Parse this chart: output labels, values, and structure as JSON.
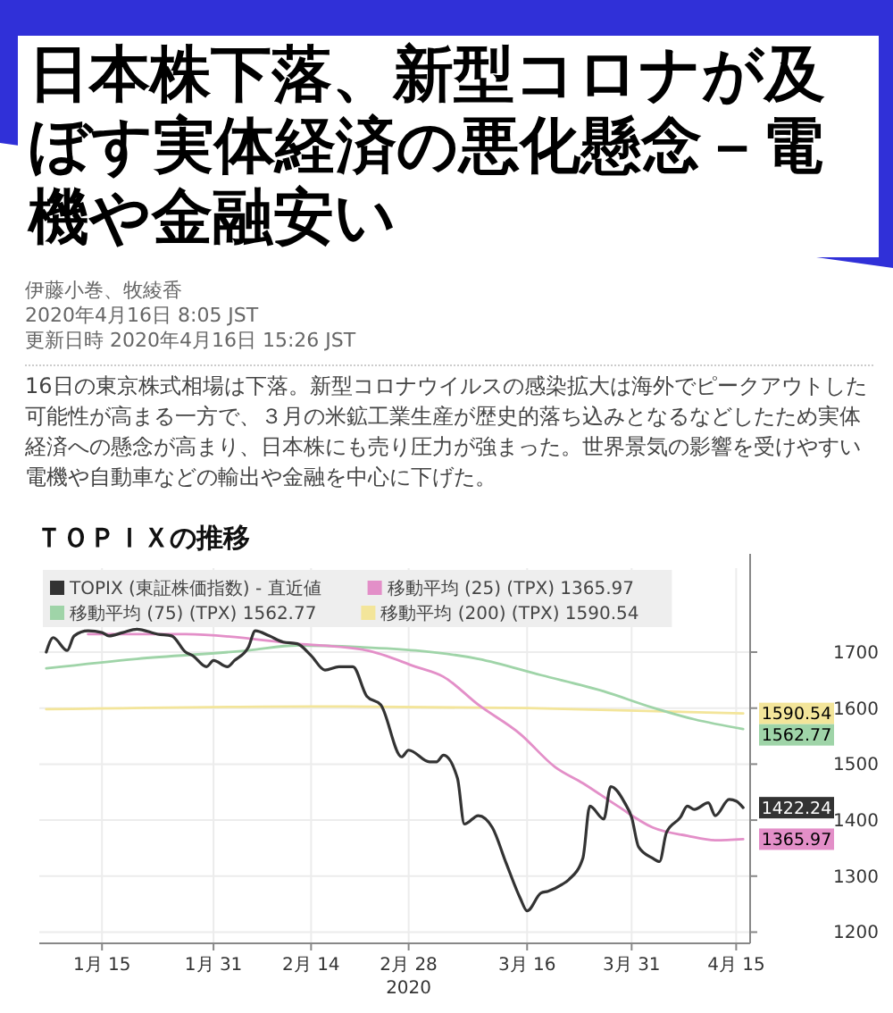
{
  "chart_data": {
    "type": "line",
    "title": "日本株下落、新型コロナが及ぼす実体経済の悪化懸念－電機や金融安い",
    "subtitle": "ＴＯＰＩＸの推移",
    "xlabel": "2020",
    "annotations": [
      "伊藤小巻、牧綾香",
      "2020年4月16日 8:05 JST",
      "更新日時 2020年4月16日 15:26 JST",
      "16日の東京株式相場は下落。新型コロナウイルスの感染拡大は海外でピークアウトした可能性が高まる一方で、３月の米鉱工業生産が歴史的落ち込みとなるなどしたため実体経済への懸念が高まり、日本株にも売り圧力が強まった。世界景気の影響を受けやすい電機や自動車などの輸出や金融を中心に下げた。"
    ],
    "xlim": [
      "2020-01-06",
      "2020-04-17"
    ],
    "xticks": [
      {
        "value": "2020-01-15",
        "label": "1月 15"
      },
      {
        "value": "2020-01-31",
        "label": "1月 31"
      },
      {
        "value": "2020-02-14",
        "label": "2月 14"
      },
      {
        "value": "2020-02-28",
        "label": "2月 28"
      },
      {
        "value": "2020-03-16",
        "label": "3月 16"
      },
      {
        "value": "2020-03-31",
        "label": "3月 31"
      },
      {
        "value": "2020-04-15",
        "label": "4月 15"
      }
    ],
    "ylim": [
      1180,
      1850
    ],
    "yticks": [
      1200,
      1300,
      1400,
      1500,
      1600,
      1700
    ],
    "grid": true,
    "legend": "top left",
    "line_style": "solid",
    "marker": "none",
    "series": [
      {
        "name": "TOPIX (東証株価指数) - 直近値",
        "color": "#333333",
        "x": [
          "2020-01-07",
          "2020-01-08",
          "2020-01-10",
          "2020-01-11",
          "2020-01-13",
          "2020-01-15",
          "2020-01-16",
          "2020-01-18",
          "2020-01-20",
          "2020-01-23",
          "2020-01-25",
          "2020-01-27",
          "2020-01-28",
          "2020-01-30",
          "2020-01-31",
          "2020-02-02",
          "2020-02-03",
          "2020-02-05",
          "2020-02-06",
          "2020-02-08",
          "2020-02-10",
          "2020-02-12",
          "2020-02-14",
          "2020-02-16",
          "2020-02-18",
          "2020-02-20",
          "2020-02-22",
          "2020-02-24",
          "2020-02-27",
          "2020-02-28",
          "2020-03-02",
          "2020-03-03",
          "2020-03-04",
          "2020-03-06",
          "2020-03-07",
          "2020-03-09",
          "2020-03-11",
          "2020-03-13",
          "2020-03-15",
          "2020-03-16",
          "2020-03-18",
          "2020-03-19",
          "2020-03-21",
          "2020-03-22",
          "2020-03-24",
          "2020-03-25",
          "2020-03-27",
          "2020-03-28",
          "2020-03-30",
          "2020-03-31",
          "2020-04-01",
          "2020-04-03",
          "2020-04-04",
          "2020-04-05",
          "2020-04-07",
          "2020-04-08",
          "2020-04-09",
          "2020-04-11",
          "2020-04-12",
          "2020-04-14",
          "2020-04-15",
          "2020-04-16"
        ],
        "values": [
          1700,
          1726,
          1703,
          1729,
          1738,
          1735,
          1729,
          1735,
          1741,
          1732,
          1729,
          1700,
          1694,
          1674,
          1685,
          1674,
          1685,
          1709,
          1738,
          1729,
          1718,
          1715,
          1694,
          1668,
          1674,
          1674,
          1621,
          1606,
          1513,
          1525,
          1504,
          1504,
          1516,
          1475,
          1393,
          1408,
          1387,
          1323,
          1261,
          1238,
          1270,
          1273,
          1285,
          1294,
          1332,
          1425,
          1402,
          1460,
          1431,
          1405,
          1352,
          1332,
          1326,
          1378,
          1405,
          1425,
          1419,
          1431,
          1408,
          1437,
          1434,
          1422.24
        ],
        "value_labels": [
          null,
          null,
          null,
          null,
          null,
          null,
          null,
          null,
          null,
          null,
          null,
          null,
          null,
          null,
          null,
          null,
          null,
          null,
          null,
          null,
          null,
          null,
          null,
          null,
          null,
          null,
          null,
          null,
          null,
          null,
          null,
          null,
          null,
          null,
          null,
          null,
          null,
          null,
          null,
          null,
          null,
          null,
          null,
          null,
          null,
          null,
          null,
          null,
          null,
          null,
          null,
          null,
          null,
          null,
          null,
          null,
          null,
          null,
          null,
          null,
          null,
          "1422.24"
        ]
      },
      {
        "name": "移動平均 (25) (TPX) 1365.97",
        "color": "#e38fc8",
        "x": [
          "2020-01-13",
          "2020-01-27",
          "2020-02-12",
          "2020-02-22",
          "2020-02-29",
          "2020-03-04",
          "2020-03-09",
          "2020-03-15",
          "2020-03-20",
          "2020-03-24",
          "2020-03-29",
          "2020-04-03",
          "2020-04-08",
          "2020-04-12",
          "2020-04-16"
        ],
        "values": [
          1732,
          1732,
          1715,
          1703,
          1674,
          1656,
          1606,
          1554,
          1495,
          1466,
          1425,
          1387,
          1372,
          1364,
          1365.97
        ],
        "value_labels": [
          null,
          null,
          null,
          null,
          null,
          null,
          null,
          null,
          null,
          null,
          null,
          null,
          null,
          null,
          "1365.97"
        ]
      },
      {
        "name": "移動平均 (75) (TPX) 1562.77",
        "color": "#9fd4a8",
        "x": [
          "2020-01-07",
          "2020-01-20",
          "2020-02-05",
          "2020-02-12",
          "2020-02-21",
          "2020-02-29",
          "2020-03-09",
          "2020-03-18",
          "2020-03-27",
          "2020-04-03",
          "2020-04-09",
          "2020-04-16"
        ],
        "values": [
          1671,
          1688,
          1703,
          1712,
          1709,
          1703,
          1688,
          1659,
          1630,
          1601,
          1580,
          1562.77
        ],
        "value_labels": [
          null,
          null,
          null,
          null,
          null,
          null,
          null,
          null,
          null,
          null,
          null,
          "1562.77"
        ]
      },
      {
        "name": "移動平均 (200) (TPX) 1590.54",
        "color": "#f3e59a",
        "x": [
          "2020-01-07",
          "2020-02-14",
          "2020-03-16",
          "2020-04-16"
        ],
        "values": [
          1598,
          1603,
          1600,
          1590.54
        ],
        "value_labels": [
          null,
          null,
          null,
          "1590.54"
        ]
      }
    ]
  }
}
